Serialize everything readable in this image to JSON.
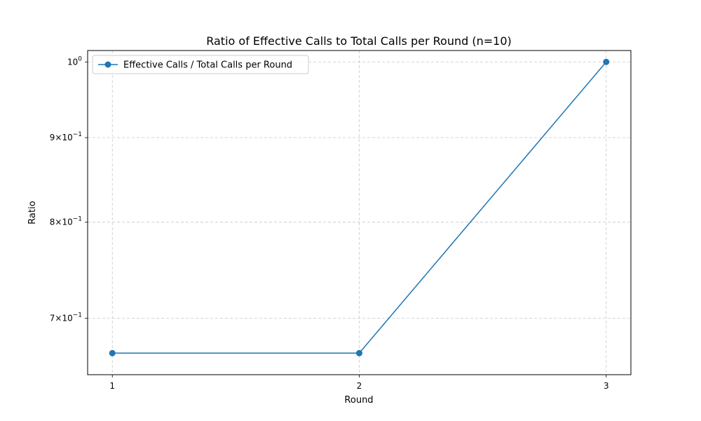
{
  "chart_data": {
    "type": "line",
    "title": "Ratio of Effective Calls to Total Calls per Round (n=10)",
    "xlabel": "Round",
    "ylabel": "Ratio",
    "x": [
      1,
      2,
      3
    ],
    "xticks": [
      "1",
      "2",
      "3"
    ],
    "yscale": "log",
    "ylim": [
      0.647,
      1.016
    ],
    "ytick_values": [
      0.7,
      0.8,
      0.9,
      1.0
    ],
    "ytick_labels": [
      {
        "base": "7×10",
        "exp": "−1"
      },
      {
        "base": "8×10",
        "exp": "−1"
      },
      {
        "base": "9×10",
        "exp": "−1"
      },
      {
        "base": "10",
        "exp": "0"
      }
    ],
    "series": [
      {
        "name": "Effective Calls / Total Calls per Round",
        "values": [
          0.6667,
          0.6667,
          1.0
        ],
        "color": "#1f77b4",
        "marker": "circle"
      }
    ],
    "grid": true,
    "legend_position": "upper-left"
  }
}
